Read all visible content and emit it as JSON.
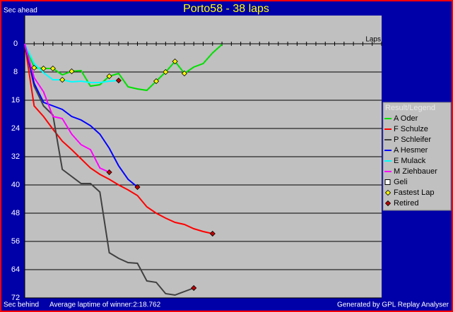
{
  "chart_data": {
    "type": "line",
    "title": "Porto58 - 38 laps",
    "y_label_top": "Sec ahead",
    "y_label_bottom": "Sec behind",
    "x_label": "Laps",
    "note": "Average laptime of winner:2:18.762",
    "credit": "Generated by GPL Replay Analyser",
    "legend_title": "Result/Legend",
    "legend": "right",
    "grid": true,
    "y_inverted": true,
    "xlim": [
      0,
      38
    ],
    "xticks": [
      0,
      1,
      2,
      3,
      4,
      5,
      6,
      7,
      8,
      9,
      10,
      11,
      12,
      13,
      14,
      15,
      16,
      17,
      18,
      19,
      20,
      21,
      22,
      23,
      24,
      25,
      26,
      27,
      28,
      29,
      30,
      31,
      32,
      33,
      34,
      35,
      36,
      37,
      38
    ],
    "ylim": [
      -8,
      72
    ],
    "yticks": [
      0,
      8,
      16,
      24,
      32,
      40,
      48,
      56,
      64,
      72
    ],
    "x": [
      0,
      1,
      2,
      3,
      4,
      5,
      6,
      7,
      8,
      9,
      10,
      11,
      12,
      13,
      14,
      15,
      16,
      17,
      18,
      19,
      20,
      21
    ],
    "series": [
      {
        "name": "A Oder",
        "color": "#00e000",
        "values": [
          0,
          6.8,
          7,
          7,
          8.8,
          7.8,
          7.6,
          12,
          11.6,
          9.2,
          8.4,
          12.2,
          12.8,
          13.2,
          10.6,
          8,
          5,
          8.4,
          6.6,
          5.6,
          2.6,
          0.2
        ]
      },
      {
        "name": "F Schulze",
        "color": "#ff0000",
        "values": [
          0,
          17.6,
          20.6,
          24.2,
          27.6,
          30,
          32.6,
          35.2,
          37,
          38.4,
          40,
          41.4,
          43,
          46.2,
          48,
          49.4,
          50.6,
          51.2,
          52.4,
          53.2,
          53.8,
          null
        ]
      },
      {
        "name": "P Schleifer",
        "color": "#404040",
        "values": [
          0,
          12,
          17.6,
          20.2,
          35.6,
          37.6,
          39.6,
          39.6,
          42,
          59.2,
          60.8,
          62,
          62.2,
          67.2,
          67.6,
          70.8,
          71.2,
          70.2,
          69.2,
          null,
          null,
          null
        ]
      },
      {
        "name": "A Hesmer",
        "color": "#0000ff",
        "values": [
          0,
          11.2,
          16.6,
          17.6,
          18.6,
          20.6,
          21.6,
          23.2,
          25.6,
          29.6,
          34.6,
          38.4,
          40.6,
          null,
          null,
          null,
          null,
          null,
          null,
          null,
          null,
          null
        ]
      },
      {
        "name": "E Mulack",
        "color": "#00ffff",
        "values": [
          0,
          5.6,
          8.2,
          10.2,
          10.2,
          10.8,
          10.6,
          11,
          11,
          10.6,
          10.4,
          null,
          null,
          null,
          null,
          null,
          null,
          null,
          null,
          null,
          null,
          null
        ]
      },
      {
        "name": "M Ziehbauer",
        "color": "#ff00ff",
        "values": [
          0,
          9.6,
          13.6,
          20.6,
          21.2,
          25.6,
          28.6,
          30,
          35.2,
          36.4,
          null,
          null,
          null,
          null,
          null,
          null,
          null,
          null,
          null,
          null,
          null,
          null
        ]
      },
      {
        "name": "Geli",
        "color": "#ffffff",
        "values": [
          null,
          null,
          null,
          null,
          null,
          null,
          null,
          null,
          null,
          null,
          null,
          null,
          null,
          null,
          null,
          null,
          null,
          null,
          null,
          null,
          null,
          null
        ]
      },
      {
        "name": "Fastest Lap",
        "color": "#ffff00",
        "marker": "diamond",
        "values": [
          null,
          6.8,
          7,
          7,
          10.2,
          7.8,
          null,
          null,
          null,
          9.2,
          null,
          null,
          null,
          null,
          10.6,
          8,
          5,
          8.4,
          null,
          null,
          null,
          null
        ]
      },
      {
        "name": "Retired",
        "color": "#c00000",
        "marker": "diamond",
        "values": [
          null,
          null,
          null,
          null,
          null,
          null,
          null,
          null,
          null,
          36.4,
          10.4,
          null,
          40.6,
          null,
          null,
          null,
          null,
          null,
          69.2,
          null,
          53.8,
          null
        ]
      }
    ]
  }
}
